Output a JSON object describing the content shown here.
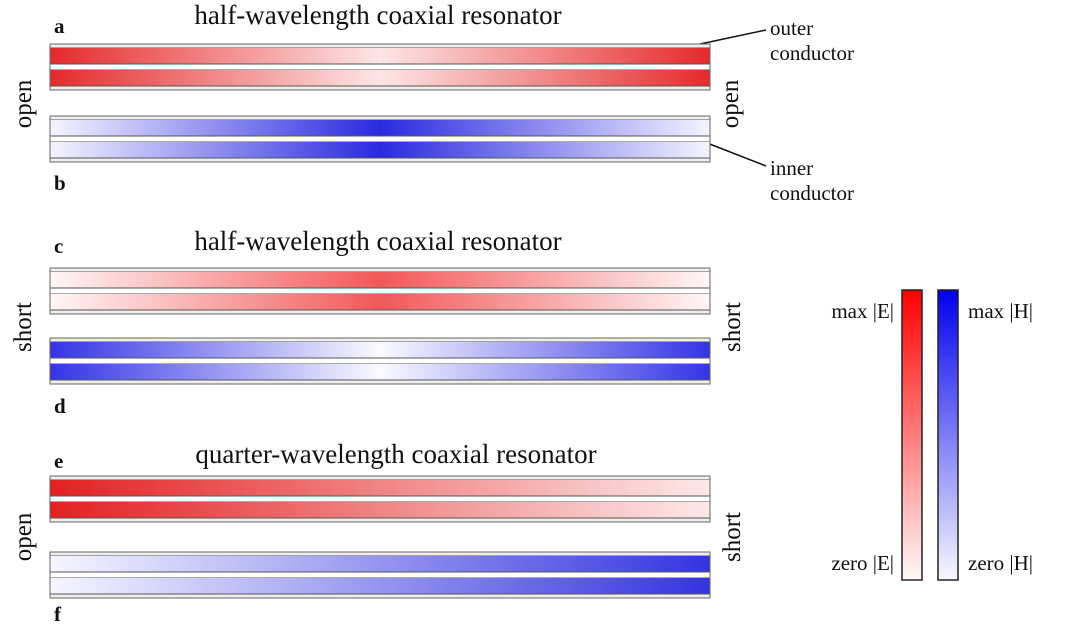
{
  "panels": [
    {
      "title": "half-wavelength coaxial resonator",
      "left_end": "open",
      "right_end": "open",
      "labels": [
        "a",
        "b"
      ]
    },
    {
      "title": "half-wavelength coaxial resonator",
      "left_end": "short",
      "right_end": "short",
      "labels": [
        "c",
        "d"
      ]
    },
    {
      "title": "quarter-wavelength coaxial resonator",
      "left_end": "open",
      "right_end": "short",
      "labels": [
        "e",
        "f"
      ]
    }
  ],
  "annotations": {
    "outer_conductor": [
      "outer",
      "conductor"
    ],
    "inner_conductor": [
      "inner",
      "conductor"
    ]
  },
  "colorbar": {
    "e_max": "max |E|",
    "e_zero": "zero |E|",
    "h_max": "max |H|",
    "h_zero": "zero |H|"
  }
}
